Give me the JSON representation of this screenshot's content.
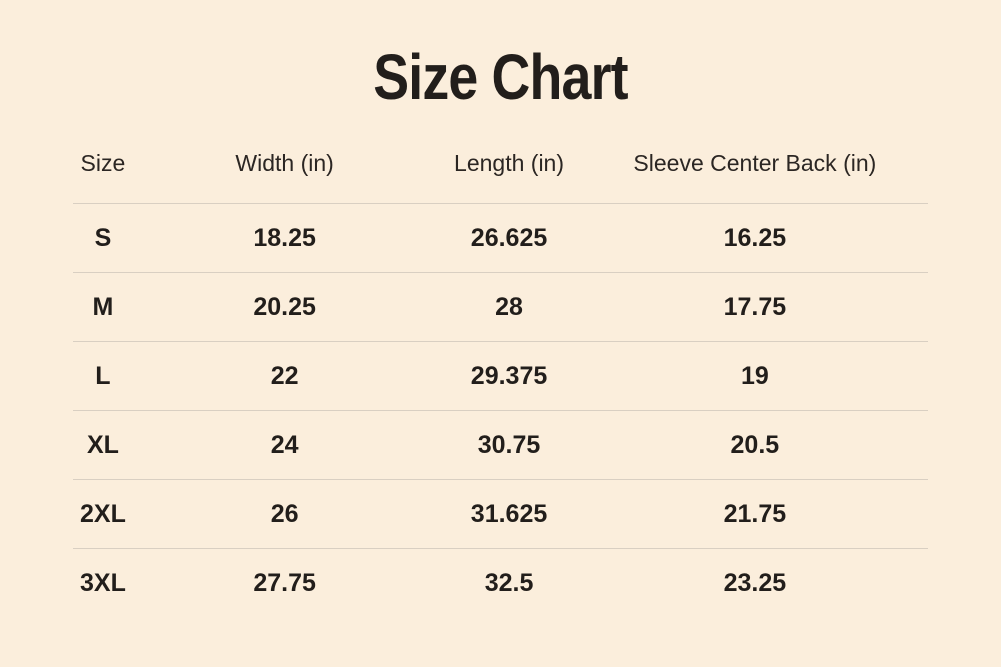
{
  "title": "Size Chart",
  "colors": {
    "background": "#fbeedc",
    "text": "#221e1b",
    "divider": "#d9cfc2"
  },
  "chart_data": {
    "type": "table",
    "title": "Size Chart",
    "columns": [
      "Size",
      "Width (in)",
      "Length (in)",
      "Sleeve Center Back (in)"
    ],
    "rows": [
      [
        "S",
        "18.25",
        "26.625",
        "16.25"
      ],
      [
        "M",
        "20.25",
        "28",
        "17.75"
      ],
      [
        "L",
        "22",
        "29.375",
        "19"
      ],
      [
        "XL",
        "24",
        "30.75",
        "20.5"
      ],
      [
        "2XL",
        "26",
        "31.625",
        "21.75"
      ],
      [
        "3XL",
        "27.75",
        "32.5",
        "23.25"
      ]
    ]
  }
}
